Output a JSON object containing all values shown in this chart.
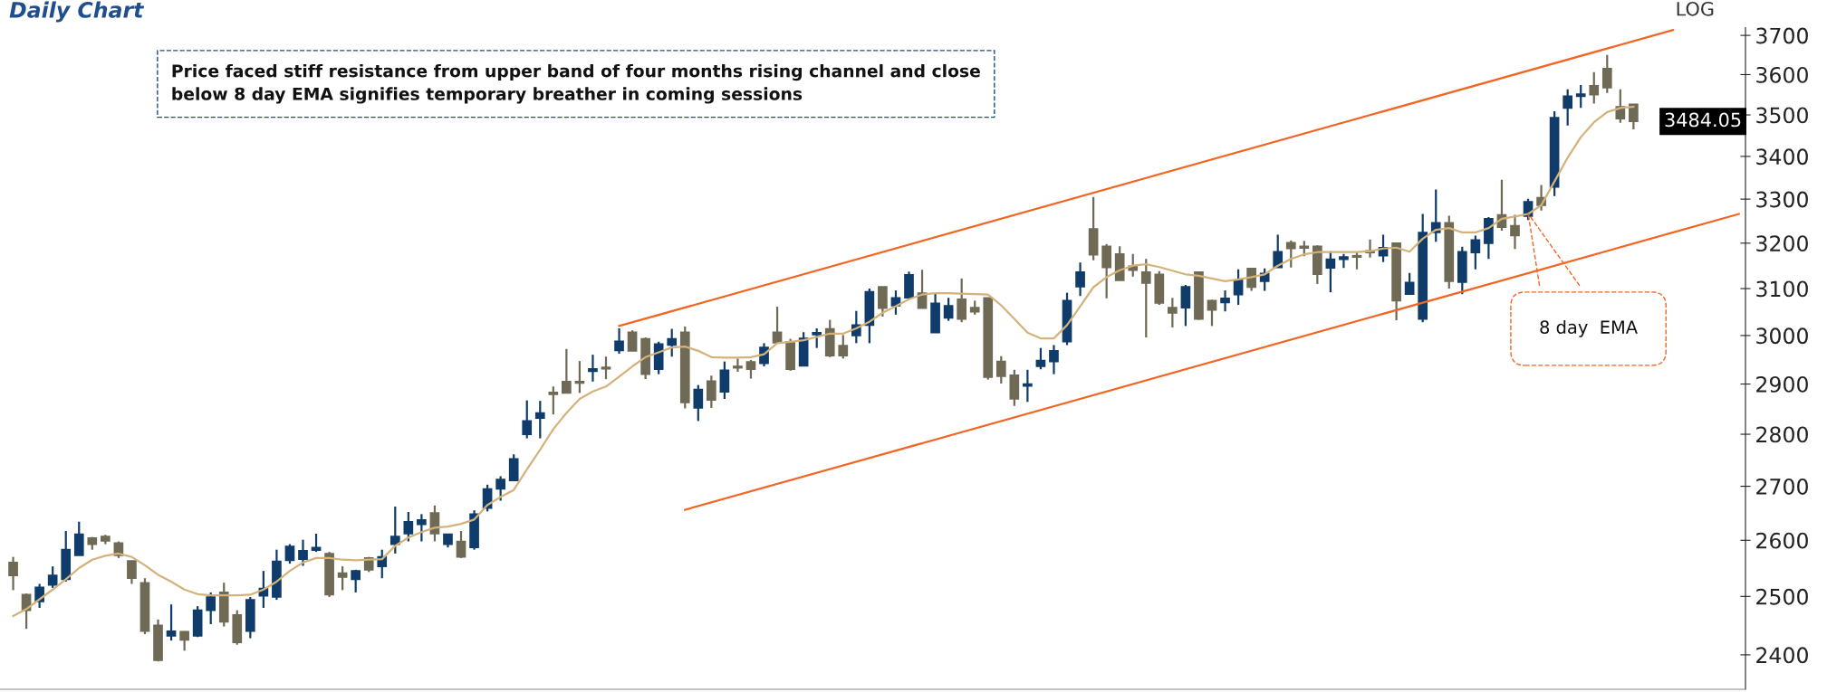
{
  "chart_data": {
    "type": "candlestick",
    "title": "Daily Chart",
    "annotations": [
      "LOG",
      "Price faced stiff resistance from upper band of four months rising channel and close\nbelow 8 day EMA signifies temporary breather in coming sessions",
      "8 day  EMA",
      "3484.05"
    ],
    "categories": [
      null,
      null,
      null,
      null,
      null,
      null,
      null,
      null,
      null,
      null,
      null,
      null,
      null,
      null,
      null,
      null,
      null,
      null,
      null,
      null,
      null,
      null,
      null,
      null,
      null,
      null,
      null,
      null,
      null,
      null,
      null,
      null,
      null,
      null,
      null,
      null,
      null,
      null,
      null,
      null,
      null,
      null,
      null,
      null,
      null,
      null,
      null,
      null,
      null,
      null,
      null,
      null,
      null,
      null,
      null,
      null,
      null,
      null,
      null,
      null,
      null,
      null,
      null,
      null,
      null,
      null,
      null,
      null,
      null,
      null,
      null,
      null,
      null,
      null,
      null,
      null,
      null,
      null,
      null,
      null,
      null,
      null,
      null,
      null,
      null,
      null,
      null,
      null,
      null,
      null,
      null,
      null,
      null,
      null,
      null,
      null,
      null,
      null,
      null,
      null,
      null,
      null,
      null,
      null,
      null,
      null,
      null,
      null,
      null,
      null,
      null,
      null,
      null,
      null,
      null,
      null,
      null,
      null,
      null,
      null,
      null,
      null,
      null,
      null,
      null,
      null,
      null,
      null,
      null,
      null,
      null,
      null
    ],
    "ohlc": [
      [
        2560,
        2570,
        2511,
        2537
      ],
      [
        2503,
        2505,
        2444,
        2476
      ],
      [
        2491,
        2522,
        2480,
        2516
      ],
      [
        2520,
        2553,
        2515,
        2537
      ],
      [
        2530,
        2617,
        2526,
        2583
      ],
      [
        2573,
        2634,
        2573,
        2611
      ],
      [
        2604,
        2606,
        2583,
        2593
      ],
      [
        2607,
        2610,
        2593,
        2599
      ],
      [
        2595,
        2598,
        2568,
        2573
      ],
      [
        2563,
        2563,
        2522,
        2532
      ],
      [
        2524,
        2532,
        2435,
        2440
      ],
      [
        2450,
        2460,
        2389,
        2391
      ],
      [
        2432,
        2486,
        2424,
        2440
      ],
      [
        2439,
        2440,
        2407,
        2425
      ],
      [
        2432,
        2483,
        2430,
        2476
      ],
      [
        2476,
        2507,
        2452,
        2499
      ],
      [
        2507,
        2524,
        2448,
        2456
      ],
      [
        2468,
        2476,
        2417,
        2421
      ],
      [
        2440,
        2499,
        2428,
        2494
      ],
      [
        2501,
        2545,
        2480,
        2514
      ],
      [
        2499,
        2583,
        2494,
        2562
      ],
      [
        2564,
        2593,
        2558,
        2589
      ],
      [
        2566,
        2601,
        2554,
        2581
      ],
      [
        2582,
        2612,
        2579,
        2587
      ],
      [
        2576,
        2579,
        2499,
        2503
      ],
      [
        2541,
        2553,
        2511,
        2534
      ],
      [
        2530,
        2547,
        2507,
        2545
      ],
      [
        2568,
        2570,
        2543,
        2547
      ],
      [
        2553,
        2583,
        2532,
        2570
      ],
      [
        2593,
        2662,
        2576,
        2607
      ],
      [
        2612,
        2652,
        2598,
        2634
      ],
      [
        2629,
        2648,
        2598,
        2637
      ],
      [
        2650,
        2664,
        2598,
        2612
      ],
      [
        2593,
        2611,
        2587,
        2611
      ],
      [
        2598,
        2617,
        2568,
        2570
      ],
      [
        2587,
        2655,
        2583,
        2648
      ],
      [
        2659,
        2703,
        2653,
        2695
      ],
      [
        2695,
        2719,
        2673,
        2713
      ],
      [
        2711,
        2761,
        2711,
        2752
      ],
      [
        2800,
        2867,
        2792,
        2826
      ],
      [
        2832,
        2866,
        2792,
        2842
      ],
      [
        2883,
        2895,
        2839,
        2879
      ],
      [
        2905,
        2972,
        2881,
        2882
      ],
      [
        2905,
        2947,
        2882,
        2902
      ],
      [
        2926,
        2960,
        2905,
        2931
      ],
      [
        2934,
        2956,
        2910,
        2931
      ],
      [
        2969,
        3015,
        2962,
        2988
      ],
      [
        3007,
        3011,
        2968,
        2968
      ],
      [
        2993,
        2996,
        2910,
        2920
      ],
      [
        2930,
        2987,
        2920,
        2982
      ],
      [
        2980,
        3014,
        2956,
        2993
      ],
      [
        3007,
        3019,
        2851,
        2863
      ],
      [
        2852,
        2898,
        2826,
        2889
      ],
      [
        2906,
        2917,
        2852,
        2868
      ],
      [
        2884,
        2946,
        2870,
        2928
      ],
      [
        2936,
        2952,
        2925,
        2933
      ],
      [
        2945,
        2949,
        2911,
        2930
      ],
      [
        2942,
        2984,
        2936,
        2975
      ],
      [
        3007,
        3061,
        2983,
        2985
      ],
      [
        2987,
        2993,
        2927,
        2930
      ],
      [
        2937,
        3007,
        2937,
        2994
      ],
      [
        3002,
        3015,
        2974,
        3006
      ],
      [
        3014,
        3033,
        2955,
        2958
      ],
      [
        2979,
        3001,
        2952,
        2958
      ],
      [
        3000,
        3052,
        2984,
        3022
      ],
      [
        3022,
        3100,
        2984,
        3093
      ],
      [
        3104,
        3104,
        3040,
        3058
      ],
      [
        3063,
        3096,
        3044,
        3080
      ],
      [
        3080,
        3137,
        3080,
        3130
      ],
      [
        3090,
        3141,
        3058,
        3058
      ],
      [
        3006,
        3090,
        3006,
        3068
      ],
      [
        3037,
        3080,
        3031,
        3063
      ],
      [
        3077,
        3122,
        3028,
        3035
      ],
      [
        3059,
        3074,
        3044,
        3050
      ],
      [
        3080,
        3080,
        2909,
        2914
      ],
      [
        2946,
        2957,
        2901,
        2916
      ],
      [
        2918,
        2929,
        2856,
        2870
      ],
      [
        2896,
        2929,
        2864,
        2900
      ],
      [
        2936,
        2974,
        2930,
        2948
      ],
      [
        2946,
        2980,
        2920,
        2968
      ],
      [
        2987,
        3091,
        2980,
        3074
      ],
      [
        3104,
        3157,
        3084,
        3136
      ],
      [
        3232,
        3305,
        3162,
        3174
      ],
      [
        3193,
        3198,
        3079,
        3146
      ],
      [
        3176,
        3193,
        3118,
        3118
      ],
      [
        3149,
        3176,
        3126,
        3140
      ],
      [
        3136,
        3165,
        2996,
        3112
      ],
      [
        3131,
        3138,
        3065,
        3069
      ],
      [
        3059,
        3080,
        3017,
        3048
      ],
      [
        3059,
        3108,
        3020,
        3104
      ],
      [
        3136,
        3136,
        3033,
        3035
      ],
      [
        3074,
        3076,
        3020,
        3054
      ],
      [
        3070,
        3096,
        3051,
        3079
      ],
      [
        3087,
        3142,
        3065,
        3118
      ],
      [
        3144,
        3144,
        3095,
        3103
      ],
      [
        3116,
        3144,
        3095,
        3133
      ],
      [
        3146,
        3219,
        3146,
        3181
      ],
      [
        3201,
        3206,
        3146,
        3188
      ],
      [
        3193,
        3205,
        3171,
        3189
      ],
      [
        3193,
        3195,
        3110,
        3131
      ],
      [
        3145,
        3182,
        3092,
        3164
      ],
      [
        3164,
        3176,
        3145,
        3169
      ],
      [
        3172,
        3181,
        3142,
        3169
      ],
      [
        3183,
        3208,
        3168,
        3179
      ],
      [
        3172,
        3219,
        3158,
        3190
      ],
      [
        3200,
        3200,
        3032,
        3074
      ],
      [
        3088,
        3134,
        3088,
        3113
      ],
      [
        3035,
        3266,
        3028,
        3224
      ],
      [
        3224,
        3322,
        3203,
        3246
      ],
      [
        3246,
        3262,
        3100,
        3116
      ],
      [
        3114,
        3192,
        3088,
        3181
      ],
      [
        3179,
        3217,
        3142,
        3207
      ],
      [
        3200,
        3259,
        3165,
        3255
      ],
      [
        3264,
        3345,
        3228,
        3236
      ],
      [
        3239,
        3264,
        3187,
        3217
      ],
      [
        3261,
        3301,
        3252,
        3294
      ],
      [
        3303,
        3333,
        3274,
        3286
      ],
      [
        3328,
        3509,
        3307,
        3493
      ],
      [
        3517,
        3563,
        3474,
        3546
      ],
      [
        3546,
        3574,
        3517,
        3551
      ],
      [
        3572,
        3606,
        3528,
        3550
      ],
      [
        3615,
        3650,
        3554,
        3567
      ],
      [
        3520,
        3563,
        3481,
        3491
      ],
      [
        3526,
        3526,
        3465,
        3484.05
      ],
      null,
      null,
      null,
      null,
      null,
      null,
      null,
      null
    ],
    "colors": [
      "#6f6a55",
      "#6f6a55",
      "#103c6b",
      "#103c6b",
      "#103c6b",
      "#103c6b",
      "#6f6a55",
      "#6f6a55",
      "#6f6a55",
      "#6f6a55",
      "#6f6a55",
      "#6f6a55",
      "#103c6b",
      "#6f6a55",
      "#103c6b",
      "#103c6b",
      "#6f6a55",
      "#6f6a55",
      "#103c6b",
      "#103c6b",
      "#103c6b",
      "#103c6b",
      "#103c6b",
      "#103c6b",
      "#6f6a55",
      "#6f6a55",
      "#103c6b",
      "#6f6a55",
      "#103c6b",
      "#103c6b",
      "#103c6b",
      "#103c6b",
      "#6f6a55",
      "#103c6b",
      "#6f6a55",
      "#103c6b",
      "#103c6b",
      "#103c6b",
      "#103c6b",
      "#103c6b",
      "#103c6b",
      "#6f6a55",
      "#6f6a55",
      "#6f6a55",
      "#103c6b",
      "#6f6a55",
      "#103c6b",
      "#6f6a55",
      "#6f6a55",
      "#103c6b",
      "#103c6b",
      "#6f6a55",
      "#103c6b",
      "#6f6a55",
      "#103c6b",
      "#6f6a55",
      "#6f6a55",
      "#103c6b",
      "#6f6a55",
      "#6f6a55",
      "#103c6b",
      "#103c6b",
      "#6f6a55",
      "#6f6a55",
      "#103c6b",
      "#103c6b",
      "#6f6a55",
      "#103c6b",
      "#103c6b",
      "#6f6a55",
      "#103c6b",
      "#103c6b",
      "#6f6a55",
      "#6f6a55",
      "#6f6a55",
      "#6f6a55",
      "#6f6a55",
      "#103c6b",
      "#103c6b",
      "#103c6b",
      "#103c6b",
      "#103c6b",
      "#6f6a55",
      "#6f6a55",
      "#6f6a55",
      "#6f6a55",
      "#6f6a55",
      "#6f6a55",
      "#6f6a55",
      "#103c6b",
      "#6f6a55",
      "#6f6a55",
      "#103c6b",
      "#103c6b",
      "#6f6a55",
      "#103c6b",
      "#103c6b",
      "#6f6a55",
      "#6f6a55",
      "#6f6a55",
      "#103c6b",
      "#103c6b",
      "#6f6a55",
      "#6f6a55",
      "#103c6b",
      "#6f6a55",
      "#103c6b",
      "#103c6b",
      "#103c6b",
      "#6f6a55",
      "#103c6b",
      "#103c6b",
      "#103c6b",
      "#6f6a55",
      "#6f6a55",
      "#103c6b",
      "#6f6a55",
      "#103c6b",
      "#103c6b",
      "#103c6b",
      "#6f6a55",
      "#6f6a55",
      "#6f6a55",
      "#6f6a55",
      null,
      null,
      null,
      null,
      null,
      null,
      null,
      null
    ],
    "series": [
      {
        "type": "line",
        "color": "#d4b27a",
        "values": [
          2466,
          2478,
          2495,
          2512,
          2530,
          2550,
          2565,
          2572,
          2576,
          2570,
          2555,
          2538,
          2526,
          2512,
          2504,
          2502,
          2502,
          2502,
          2503,
          2512,
          2526,
          2545,
          2560,
          2568,
          2568,
          2565,
          2564,
          2565,
          2566,
          2590,
          2605,
          2615,
          2623,
          2625,
          2630,
          2638,
          2665,
          2680,
          2693,
          2732,
          2770,
          2810,
          2842,
          2870,
          2885,
          2895,
          2915,
          2936,
          2955,
          2965,
          2975,
          2977,
          2968,
          2955,
          2954,
          2954,
          2955,
          2961,
          2984,
          2987,
          2990,
          2997,
          3004,
          3004,
          3015,
          3029,
          3048,
          3062,
          3077,
          3087,
          3090,
          3090,
          3089,
          3088,
          3087,
          3064,
          3035,
          3006,
          2994,
          2994,
          3022,
          3062,
          3103,
          3125,
          3140,
          3150,
          3153,
          3147,
          3139,
          3131,
          3128,
          3122,
          3116,
          3120,
          3125,
          3131,
          3150,
          3165,
          3175,
          3180,
          3180,
          3180,
          3180,
          3182,
          3188,
          3190,
          3181,
          3210,
          3230,
          3234,
          3224,
          3224,
          3234,
          3255,
          3260,
          3266,
          3286,
          3341,
          3397,
          3446,
          3482,
          3507,
          3517,
          3520,
          null,
          null,
          null,
          null,
          null,
          null,
          null,
          null
        ]
      },
      {
        "type": "line",
        "color": "#f26522",
        "values": [
          null,
          null,
          null,
          null,
          null,
          null,
          null,
          null,
          null,
          null,
          null,
          null,
          null,
          null,
          null,
          null,
          null,
          null,
          null,
          null,
          null,
          null,
          null,
          null,
          null,
          null,
          null,
          null,
          null,
          null,
          null,
          null,
          null,
          null,
          null,
          null,
          null,
          null,
          null,
          null,
          null,
          null,
          null,
          null,
          null,
          null,
          3020,
          null,
          null,
          null,
          null,
          null,
          null,
          null,
          null,
          null,
          null,
          null,
          null,
          null,
          null,
          null,
          null,
          null,
          null,
          null,
          null,
          null,
          null,
          null,
          null,
          null,
          null,
          null,
          null,
          null,
          null,
          null,
          null,
          null,
          null,
          null,
          null,
          null,
          null,
          null,
          null,
          null,
          null,
          null,
          null,
          null,
          null,
          null,
          null,
          null,
          null,
          null,
          null,
          null,
          null,
          null,
          null,
          null,
          null,
          null,
          null,
          null,
          null,
          null,
          null,
          null,
          null,
          null,
          null,
          null,
          null,
          null,
          null,
          null,
          null,
          null,
          null,
          null,
          null,
          null,
          3714,
          null,
          null,
          null,
          null,
          null
        ]
      },
      {
        "type": "line",
        "color": "#f26522",
        "values": [
          null,
          null,
          null,
          null,
          null,
          null,
          null,
          null,
          null,
          null,
          null,
          null,
          null,
          null,
          null,
          null,
          null,
          null,
          null,
          null,
          null,
          null,
          null,
          null,
          null,
          null,
          null,
          null,
          null,
          null,
          null,
          null,
          null,
          null,
          null,
          null,
          null,
          null,
          null,
          null,
          null,
          null,
          null,
          null,
          null,
          null,
          null,
          null,
          null,
          null,
          null,
          2656,
          null,
          null,
          null,
          null,
          null,
          null,
          null,
          null,
          null,
          null,
          null,
          null,
          null,
          null,
          null,
          null,
          null,
          null,
          null,
          null,
          null,
          null,
          null,
          null,
          null,
          null,
          null,
          null,
          null,
          null,
          null,
          null,
          null,
          null,
          null,
          null,
          null,
          null,
          null,
          null,
          null,
          null,
          null,
          null,
          null,
          null,
          null,
          null,
          null,
          null,
          null,
          null,
          null,
          null,
          null,
          null,
          null,
          null,
          null,
          null,
          null,
          null,
          null,
          null,
          null,
          null,
          null,
          null,
          null,
          null,
          null,
          null,
          null,
          null,
          null,
          null,
          null,
          null,
          null,
          3266
        ]
      }
    ],
    "log": true,
    "ylim": [
      2343,
      3720
    ],
    "yticks": [
      2400,
      2500,
      2600,
      2700,
      2800,
      2900,
      3000,
      3100,
      3200,
      3300,
      3400,
      3500,
      3600,
      3700
    ],
    "tick_labels": "y"
  }
}
